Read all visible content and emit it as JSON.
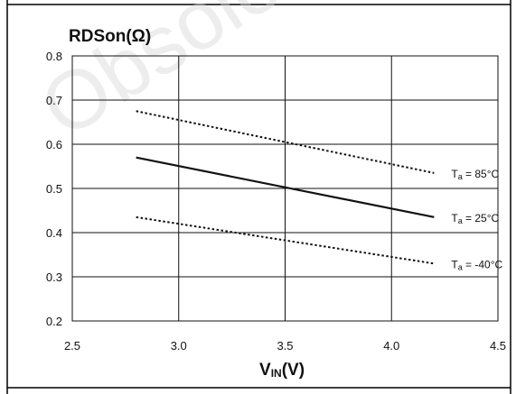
{
  "chart_data": {
    "type": "line",
    "title": "RDSon(Ω)",
    "xlabel_main": "V",
    "xlabel_sub": "IN",
    "xlabel_suffix": "(V)",
    "ylabel": "",
    "xlim": [
      2.5,
      4.5
    ],
    "ylim": [
      0.2,
      0.8
    ],
    "x_ticks": [
      "2.5",
      "3.0",
      "3.5",
      "4.0",
      "4.5"
    ],
    "y_ticks": [
      "0.8",
      "0.7",
      "0.6",
      "0.5",
      "0.4",
      "0.3",
      "0.2"
    ],
    "grid": true,
    "series": [
      {
        "name": "Ta = 85°C",
        "label_main": "T",
        "label_sub": "a",
        "label_suffix": " = 85°C",
        "style": "dotted",
        "color": "#111111",
        "x": [
          2.8,
          4.2
        ],
        "y": [
          0.675,
          0.535
        ]
      },
      {
        "name": "Ta = 25°C",
        "label_main": "T",
        "label_sub": "a",
        "label_suffix": " = 25°C",
        "style": "solid",
        "color": "#111111",
        "x": [
          2.8,
          4.2
        ],
        "y": [
          0.57,
          0.435
        ]
      },
      {
        "name": "Ta = -40°C",
        "label_main": "T",
        "label_sub": "a",
        "label_suffix": " = -40°C",
        "style": "dotted",
        "color": "#111111",
        "x": [
          2.8,
          4.2
        ],
        "y": [
          0.435,
          0.33
        ]
      }
    ]
  }
}
